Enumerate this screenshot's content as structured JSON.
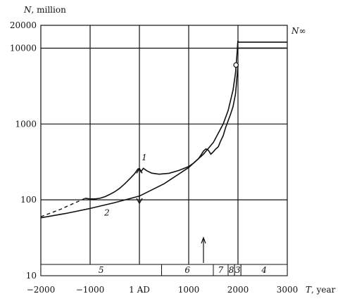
{
  "chart_data": {
    "type": "line",
    "y_axis_label_symbol": "N",
    "y_axis_label_unit": ", million",
    "x_axis_label_symbol": "T",
    "x_axis_label_unit": ", year",
    "y_scale": "log",
    "xlim": [
      -2000,
      3000
    ],
    "ylim": [
      10,
      20000
    ],
    "x_ticks": [
      {
        "value": -2000,
        "label": "−2000"
      },
      {
        "value": -1000,
        "label": "−1000"
      },
      {
        "value": 0,
        "label": "1 AD"
      },
      {
        "value": 1000,
        "label": "1000"
      },
      {
        "value": 2000,
        "label": "2000"
      },
      {
        "value": 3000,
        "label": "3000"
      }
    ],
    "y_ticks": [
      {
        "value": 10,
        "label": "10"
      },
      {
        "value": 100,
        "label": "100"
      },
      {
        "value": 1000,
        "label": "1000"
      },
      {
        "value": 10000,
        "label": "10000"
      },
      {
        "value": 20000,
        "label": "20000"
      }
    ],
    "grid": true,
    "series": [
      {
        "label": "1",
        "style": "solid",
        "x": [
          -1100,
          -1000,
          -900,
          -800,
          -700,
          -600,
          -500,
          -400,
          -300,
          -200,
          -100,
          -30,
          0,
          30,
          80,
          150,
          250,
          400,
          600,
          800,
          1000,
          1100,
          1200,
          1250,
          1300,
          1350,
          1400,
          1450,
          1500,
          1550,
          1600,
          1650,
          1700,
          1750,
          1800,
          1850,
          1900,
          1950,
          1970,
          1990,
          2000
        ],
        "y": [
          105,
          103,
          103,
          105,
          110,
          118,
          128,
          142,
          162,
          188,
          220,
          255,
          260,
          235,
          260,
          242,
          225,
          218,
          224,
          244,
          275,
          305,
          350,
          390,
          440,
          470,
          450,
          400,
          430,
          470,
          500,
          600,
          700,
          900,
          1100,
          1350,
          1700,
          2500,
          3500,
          5000,
          6000
        ]
      },
      {
        "label": "",
        "style": "dashed",
        "x": [
          -2000,
          -1800,
          -1600,
          -1400,
          -1200,
          -1100
        ],
        "y": [
          60,
          67,
          75,
          86,
          98,
          105
        ]
      },
      {
        "label": "2",
        "style": "solid",
        "x": [
          -2000,
          -1500,
          -1000,
          -500,
          0,
          500,
          1000,
          1300,
          1500,
          1700,
          1800,
          1900,
          1950,
          1980,
          1995,
          2000
        ],
        "y": [
          58,
          66,
          77,
          92,
          112,
          163,
          267,
          400,
          570,
          1000,
          1500,
          2800,
          4700,
          8300,
          12000,
          12500
        ]
      }
    ],
    "n_infinity": {
      "label": "N∞",
      "y_upper": 12000,
      "y_lower": 10000,
      "x_start": 2000,
      "x_end": 3000
    },
    "range_markers": {
      "x": 0,
      "y_top": 260,
      "y_bottom": 90
    },
    "open_point": {
      "x": 1960,
      "y": 6000
    },
    "era_arrow_x": 1300,
    "era_bands": [
      {
        "label": "5",
        "x_start": -2000,
        "x_end": 450
      },
      {
        "label": "6",
        "x_start": 450,
        "x_end": 1500
      },
      {
        "label": "7",
        "x_start": 1500,
        "x_end": 1800
      },
      {
        "label": "8",
        "x_start": 1800,
        "x_end": 1930
      },
      {
        "label": "3",
        "x_start": 1930,
        "x_end": 2060
      },
      {
        "label": "4",
        "x_start": 2060,
        "x_end": 3000
      }
    ]
  }
}
